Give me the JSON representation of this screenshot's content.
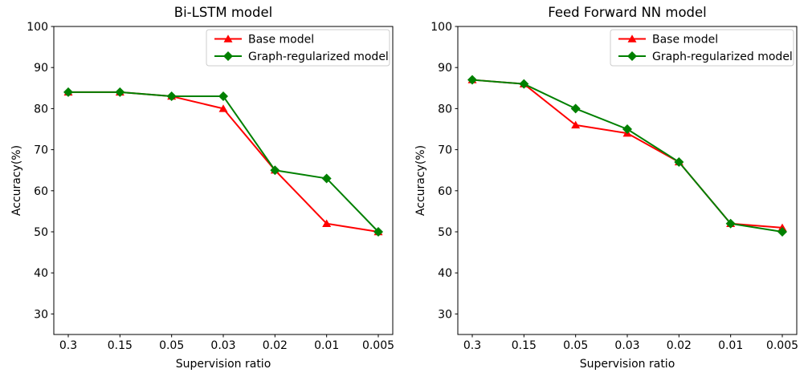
{
  "figure": {
    "background": "#ffffff",
    "accent_colors": {
      "base_model": "#ff0000",
      "graph_regularized_model": "#008000"
    }
  },
  "chart_data": [
    {
      "type": "line",
      "title": "Bi-LSTM model",
      "xlabel": "Supervision ratio",
      "ylabel": "Accuracy(%)",
      "categories": [
        "0.3",
        "0.15",
        "0.05",
        "0.03",
        "0.02",
        "0.01",
        "0.005"
      ],
      "yticks": [
        30,
        40,
        50,
        60,
        70,
        80,
        90,
        100
      ],
      "ylim": [
        25,
        100
      ],
      "grid": false,
      "legend_position": "upper right",
      "series": [
        {
          "name": "Base model",
          "color": "#ff0000",
          "marker": "triangle",
          "values": [
            84,
            84,
            83,
            80,
            65,
            52,
            50
          ]
        },
        {
          "name": "Graph-regularized model",
          "color": "#008000",
          "marker": "diamond",
          "values": [
            84,
            84,
            83,
            83,
            65,
            63,
            50
          ]
        }
      ]
    },
    {
      "type": "line",
      "title": "Feed Forward NN model",
      "xlabel": "Supervision ratio",
      "ylabel": "Accuracy(%)",
      "categories": [
        "0.3",
        "0.15",
        "0.05",
        "0.03",
        "0.02",
        "0.01",
        "0.005"
      ],
      "yticks": [
        30,
        40,
        50,
        60,
        70,
        80,
        90,
        100
      ],
      "ylim": [
        25,
        100
      ],
      "grid": false,
      "legend_position": "upper right",
      "series": [
        {
          "name": "Base model",
          "color": "#ff0000",
          "marker": "triangle",
          "values": [
            87,
            86,
            76,
            74,
            67,
            52,
            51
          ]
        },
        {
          "name": "Graph-regularized model",
          "color": "#008000",
          "marker": "diamond",
          "values": [
            87,
            86,
            80,
            75,
            67,
            52,
            50
          ]
        }
      ]
    }
  ]
}
